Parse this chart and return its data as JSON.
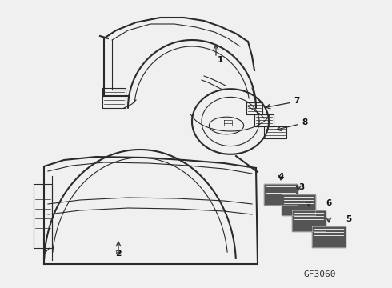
{
  "bg_color": "#f0f0f0",
  "line_color": "#2a2a2a",
  "label_color": "#111111",
  "diagram_code": "GF3060",
  "fig_width": 4.9,
  "fig_height": 3.6,
  "dpi": 100
}
